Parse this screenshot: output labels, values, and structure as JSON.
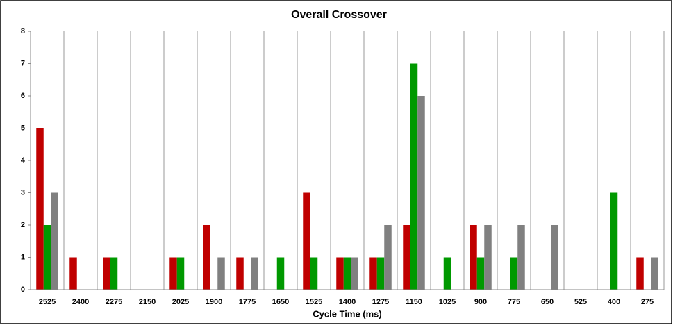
{
  "chart_data": {
    "type": "bar",
    "title": "Overall Crossover",
    "x_label": "Cycle Time (ms)",
    "categories": [
      "2525",
      "2400",
      "2275",
      "2150",
      "2025",
      "1900",
      "1775",
      "1650",
      "1525",
      "1400",
      "1275",
      "1150",
      "1025",
      "900",
      "775",
      "650",
      "525",
      "400",
      "275"
    ],
    "series": [
      {
        "color": "#c00000",
        "values": [
          5,
          1,
          1,
          0,
          1,
          2,
          1,
          0,
          3,
          1,
          1,
          2,
          0,
          2,
          0,
          0,
          0,
          0,
          1
        ]
      },
      {
        "color": "#009900",
        "values": [
          2,
          0,
          1,
          0,
          1,
          0,
          0,
          1,
          1,
          1,
          1,
          7,
          1,
          1,
          1,
          0,
          0,
          3,
          0
        ]
      },
      {
        "color": "#808080",
        "values": [
          3,
          0,
          0,
          0,
          0,
          1,
          1,
          0,
          0,
          1,
          2,
          6,
          0,
          2,
          2,
          2,
          0,
          0,
          1
        ]
      }
    ],
    "ylim": [
      0,
      8
    ],
    "yticks": [
      0,
      1,
      2,
      3,
      4,
      5,
      6,
      7,
      8
    ],
    "grid": false
  }
}
